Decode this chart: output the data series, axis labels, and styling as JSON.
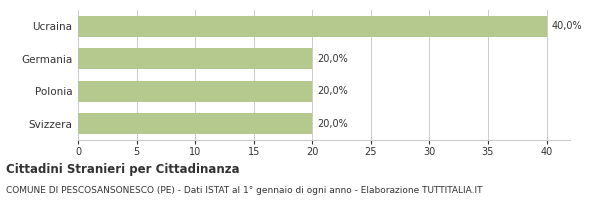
{
  "categories": [
    "Svizzera",
    "Polonia",
    "Germania",
    "Ucraina"
  ],
  "values": [
    20.0,
    20.0,
    20.0,
    40.0
  ],
  "bar_color": "#b5c98e",
  "bar_labels": [
    "20,0%",
    "20,0%",
    "20,0%",
    "40,0%"
  ],
  "xlim": [
    0,
    42
  ],
  "xticks": [
    0,
    5,
    10,
    15,
    20,
    25,
    30,
    35,
    40
  ],
  "title_bold": "Cittadini Stranieri per Cittadinanza",
  "subtitle": "COMUNE DI PESCOSANSONESCO (PE) - Dati ISTAT al 1° gennaio di ogni anno - Elaborazione TUTTITALIA.IT",
  "title_fontsize": 8.5,
  "subtitle_fontsize": 6.5,
  "label_fontsize": 7,
  "tick_fontsize": 7,
  "ytick_fontsize": 7.5,
  "background_color": "#ffffff",
  "grid_color": "#cccccc",
  "text_color": "#333333",
  "bar_height": 0.65
}
